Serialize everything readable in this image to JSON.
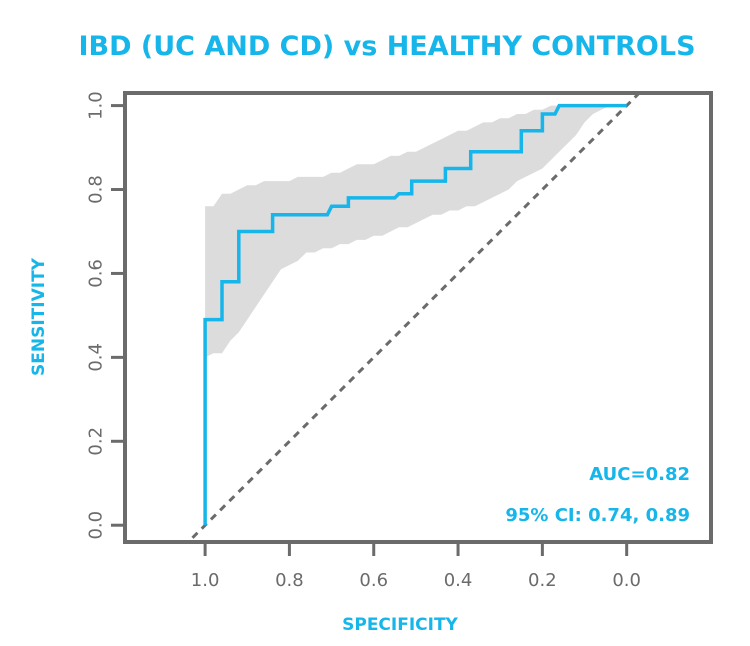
{
  "chart_data": {
    "type": "line",
    "title": "IBD (UC AND CD) vs HEALTHY CONTROLS",
    "xlabel": "SPECIFICITY",
    "ylabel": "SENSITIVITY",
    "x_reversed": true,
    "xlim": [
      1.19,
      -0.2
    ],
    "ylim": [
      -0.04,
      1.03
    ],
    "xticks": [
      1.0,
      0.8,
      0.6,
      0.4,
      0.2,
      0.0
    ],
    "xtick_labels": [
      "1.0",
      "0.8",
      "0.6",
      "0.4",
      "0.2",
      "0.0"
    ],
    "yticks": [
      0.0,
      0.2,
      0.4,
      0.6,
      0.8,
      1.0
    ],
    "ytick_labels": [
      "0.0",
      "0.2",
      "0.4",
      "0.6",
      "0.8",
      "1.0"
    ],
    "series": [
      {
        "name": "ROC",
        "color": "#16b5ea",
        "x": [
          1.0,
          1.0,
          0.99,
          0.98,
          0.96,
          0.96,
          0.93,
          0.92,
          0.92,
          0.91,
          0.87,
          0.85,
          0.84,
          0.84,
          0.83,
          0.78,
          0.73,
          0.72,
          0.71,
          0.7,
          0.68,
          0.67,
          0.66,
          0.66,
          0.63,
          0.58,
          0.56,
          0.55,
          0.54,
          0.51,
          0.51,
          0.48,
          0.44,
          0.43,
          0.43,
          0.42,
          0.41,
          0.38,
          0.37,
          0.37,
          0.35,
          0.32,
          0.3,
          0.27,
          0.26,
          0.25,
          0.25,
          0.22,
          0.21,
          0.2,
          0.2,
          0.19,
          0.18,
          0.17,
          0.16,
          0.14,
          0.11,
          0.08,
          0.05,
          0.02,
          0.0
        ],
        "y": [
          0.0,
          0.49,
          0.49,
          0.49,
          0.49,
          0.58,
          0.58,
          0.58,
          0.7,
          0.7,
          0.7,
          0.7,
          0.7,
          0.74,
          0.74,
          0.74,
          0.74,
          0.74,
          0.74,
          0.76,
          0.76,
          0.76,
          0.76,
          0.78,
          0.78,
          0.78,
          0.78,
          0.78,
          0.79,
          0.79,
          0.82,
          0.82,
          0.82,
          0.82,
          0.85,
          0.85,
          0.85,
          0.85,
          0.85,
          0.89,
          0.89,
          0.89,
          0.89,
          0.89,
          0.89,
          0.89,
          0.94,
          0.94,
          0.94,
          0.94,
          0.98,
          0.98,
          0.98,
          0.98,
          1.0,
          1.0,
          1.0,
          1.0,
          1.0,
          1.0,
          1.0
        ]
      },
      {
        "name": "95% CI band",
        "color": "#dcdcdc",
        "x": [
          1.0,
          0.98,
          0.96,
          0.94,
          0.92,
          0.9,
          0.88,
          0.86,
          0.84,
          0.82,
          0.8,
          0.78,
          0.76,
          0.74,
          0.72,
          0.7,
          0.68,
          0.66,
          0.64,
          0.62,
          0.6,
          0.58,
          0.56,
          0.54,
          0.52,
          0.5,
          0.48,
          0.46,
          0.44,
          0.42,
          0.4,
          0.38,
          0.36,
          0.34,
          0.32,
          0.3,
          0.28,
          0.26,
          0.24,
          0.22,
          0.2,
          0.18,
          0.16,
          0.14,
          0.12,
          0.1,
          0.08,
          0.06,
          0.04,
          0.02,
          0.0
        ],
        "upper": [
          0.76,
          0.76,
          0.79,
          0.79,
          0.8,
          0.81,
          0.81,
          0.82,
          0.82,
          0.82,
          0.82,
          0.83,
          0.83,
          0.83,
          0.83,
          0.84,
          0.84,
          0.85,
          0.86,
          0.86,
          0.86,
          0.87,
          0.88,
          0.88,
          0.89,
          0.89,
          0.9,
          0.91,
          0.92,
          0.93,
          0.94,
          0.94,
          0.95,
          0.96,
          0.96,
          0.97,
          0.97,
          0.98,
          0.98,
          0.99,
          0.99,
          1.0,
          1.0,
          1.0,
          1.0,
          1.0,
          1.0,
          1.0,
          1.0,
          1.0,
          1.0
        ],
        "lower": [
          0.4,
          0.41,
          0.41,
          0.44,
          0.46,
          0.49,
          0.52,
          0.55,
          0.58,
          0.61,
          0.62,
          0.63,
          0.65,
          0.65,
          0.66,
          0.66,
          0.67,
          0.67,
          0.68,
          0.68,
          0.69,
          0.69,
          0.7,
          0.71,
          0.71,
          0.72,
          0.73,
          0.74,
          0.74,
          0.75,
          0.75,
          0.76,
          0.76,
          0.77,
          0.78,
          0.79,
          0.8,
          0.82,
          0.83,
          0.84,
          0.85,
          0.87,
          0.89,
          0.91,
          0.93,
          0.96,
          0.98,
          0.99,
          1.0,
          1.0,
          1.0
        ]
      },
      {
        "name": "reference diagonal",
        "color": "#6b6b6b",
        "x": [
          1.03,
          0.0,
          -0.03
        ],
        "y": [
          -0.03,
          1.0,
          1.03
        ]
      }
    ],
    "annotations": [
      "AUC=0.82",
      "95% CI: 0.74, 0.89"
    ]
  }
}
